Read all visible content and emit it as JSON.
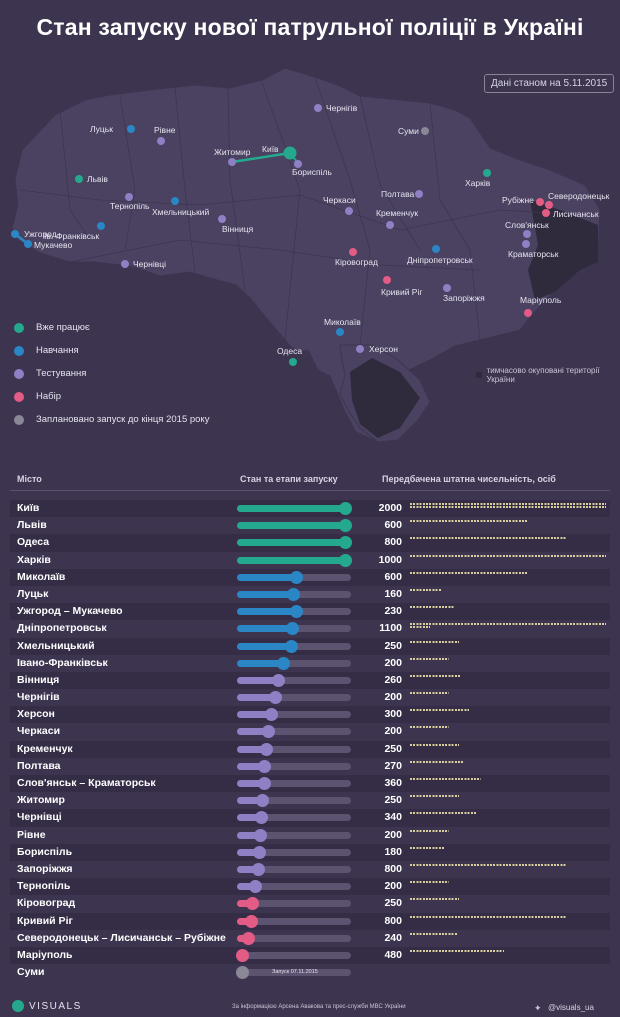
{
  "header": {
    "title": "Стан запуску нової патрульної поліції в Україні",
    "date_note": "Дані станом на 5.11.2015"
  },
  "legend": {
    "items": [
      {
        "label": "Вже працює",
        "color": "#25a98e"
      },
      {
        "label": "Навчання",
        "color": "#2b86c5"
      },
      {
        "label": "Тестування",
        "color": "#8f7fc4"
      },
      {
        "label": "Набір",
        "color": "#e35c86"
      },
      {
        "label": "Заплановано запуск до кінця 2015 року",
        "color": "#8a8796"
      }
    ],
    "occupied_note": "тимчасово окуповані території України"
  },
  "map_cities": [
    {
      "name": "Київ",
      "status": "Вже працює"
    },
    {
      "name": "Бориспіль",
      "status": "Тестування"
    },
    {
      "name": "Житомир",
      "status": "Тестування"
    },
    {
      "name": "Чернігів",
      "status": "Тестування"
    },
    {
      "name": "Суми",
      "status": "Заплановано"
    },
    {
      "name": "Луцьк",
      "status": "Навчання"
    },
    {
      "name": "Рівне",
      "status": "Тестування"
    },
    {
      "name": "Львів",
      "status": "Вже працює"
    },
    {
      "name": "Тернопіль",
      "status": "Тестування"
    },
    {
      "name": "Хмельницький",
      "status": "Навчання"
    },
    {
      "name": "Вінниця",
      "status": "Тестування"
    },
    {
      "name": "Ів.-Франківськ",
      "status": "Навчання"
    },
    {
      "name": "Ужгород",
      "status": "Навчання"
    },
    {
      "name": "Мукачево",
      "status": "Навчання"
    },
    {
      "name": "Чернівці",
      "status": "Тестування"
    },
    {
      "name": "Черкаси",
      "status": "Тестування"
    },
    {
      "name": "Кременчук",
      "status": "Тестування"
    },
    {
      "name": "Полтава",
      "status": "Тестування"
    },
    {
      "name": "Харків",
      "status": "Вже працює"
    },
    {
      "name": "Кіровоград",
      "status": "Набір"
    },
    {
      "name": "Дніпропетровськ",
      "status": "Навчання"
    },
    {
      "name": "Кривий Ріг",
      "status": "Набір"
    },
    {
      "name": "Запоріжжя",
      "status": "Тестування"
    },
    {
      "name": "Миколаїв",
      "status": "Навчання"
    },
    {
      "name": "Одеса",
      "status": "Вже працює"
    },
    {
      "name": "Херсон",
      "status": "Тестування"
    },
    {
      "name": "Маріуполь",
      "status": "Набір"
    },
    {
      "name": "Северодонецьк",
      "status": "Набір"
    },
    {
      "name": "Рубіжне",
      "status": "Набір"
    },
    {
      "name": "Лисичанськ",
      "status": "Набір"
    },
    {
      "name": "Слов'янськ",
      "status": "Тестування"
    },
    {
      "name": "Краматорськ",
      "status": "Тестування"
    }
  ],
  "table": {
    "col_city": "Місто",
    "col_stage": "Стан та етапи запуску",
    "col_staff": "Передбачена штатна чисельність, осіб"
  },
  "chart_data": {
    "type": "table",
    "progress_unit": "fraction of launch pipeline",
    "rows": [
      {
        "city": "Київ",
        "status": "Вже працює",
        "progress": 0.95,
        "staff": 2000
      },
      {
        "city": "Львів",
        "status": "Вже працює",
        "progress": 0.95,
        "staff": 600
      },
      {
        "city": "Одеса",
        "status": "Вже працює",
        "progress": 0.95,
        "staff": 800
      },
      {
        "city": "Харків",
        "status": "Вже працює",
        "progress": 0.95,
        "staff": 1000
      },
      {
        "city": "Миколаїв",
        "status": "Навчання",
        "progress": 0.52,
        "staff": 600
      },
      {
        "city": "Луцьк",
        "status": "Навчання",
        "progress": 0.49,
        "staff": 160
      },
      {
        "city": "Ужгород – Мукачево",
        "status": "Навчання",
        "progress": 0.52,
        "staff": 230
      },
      {
        "city": "Дніпропетровськ",
        "status": "Навчання",
        "progress": 0.48,
        "staff": 1100
      },
      {
        "city": "Хмельницький",
        "status": "Навчання",
        "progress": 0.47,
        "staff": 250
      },
      {
        "city": "Івано-Франківськ",
        "status": "Навчання",
        "progress": 0.4,
        "staff": 200
      },
      {
        "city": "Вінниця",
        "status": "Тестування",
        "progress": 0.36,
        "staff": 260
      },
      {
        "city": "Чернігів",
        "status": "Тестування",
        "progress": 0.33,
        "staff": 200
      },
      {
        "city": "Херсон",
        "status": "Тестування",
        "progress": 0.3,
        "staff": 300
      },
      {
        "city": "Черкаси",
        "status": "Тестування",
        "progress": 0.27,
        "staff": 200
      },
      {
        "city": "Кременчук",
        "status": "Тестування",
        "progress": 0.25,
        "staff": 250
      },
      {
        "city": "Полтава",
        "status": "Тестування",
        "progress": 0.24,
        "staff": 270
      },
      {
        "city": "Слов'янськ – Краматорськ",
        "status": "Тестування",
        "progress": 0.24,
        "staff": 360
      },
      {
        "city": "Житомир",
        "status": "Тестування",
        "progress": 0.22,
        "staff": 250
      },
      {
        "city": "Чернівці",
        "status": "Тестування",
        "progress": 0.21,
        "staff": 340
      },
      {
        "city": "Рівне",
        "status": "Тестування",
        "progress": 0.2,
        "staff": 200
      },
      {
        "city": "Бориспіль",
        "status": "Тестування",
        "progress": 0.19,
        "staff": 180
      },
      {
        "city": "Запоріжжя",
        "status": "Тестування",
        "progress": 0.18,
        "staff": 800
      },
      {
        "city": "Тернопіль",
        "status": "Тестування",
        "progress": 0.16,
        "staff": 200
      },
      {
        "city": "Кіровоград",
        "status": "Набір",
        "progress": 0.13,
        "staff": 250
      },
      {
        "city": "Кривий Ріг",
        "status": "Набір",
        "progress": 0.12,
        "staff": 800
      },
      {
        "city": "Северодонецьк – Лисичанськ – Рубіжне",
        "status": "Набір",
        "progress": 0.1,
        "staff": 240
      },
      {
        "city": "Маріуполь",
        "status": "Набір",
        "progress": 0.04,
        "staff": 480
      },
      {
        "city": "Суми",
        "status": "Заплановано",
        "progress": 0.04,
        "staff": null,
        "note": "Запуск 07.11.2015"
      }
    ]
  },
  "footer": {
    "logo": "VISUALS",
    "source": "За інформацією Арсена Авакова та прес-служби МВС України",
    "handle": "@visuals_ua"
  }
}
